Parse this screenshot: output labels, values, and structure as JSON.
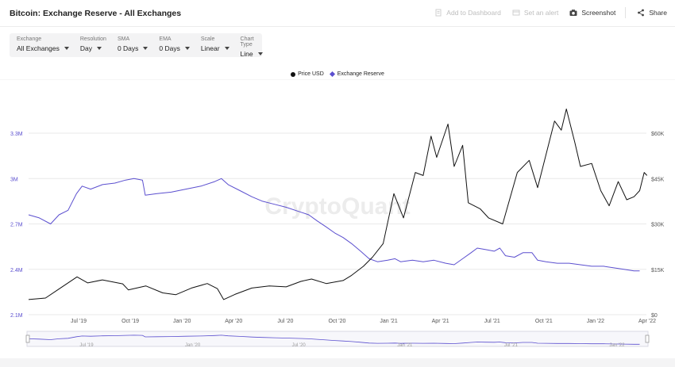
{
  "header": {
    "title": "Bitcoin: Exchange Reserve - All Exchanges",
    "actions": {
      "add_dashboard": "Add to Dashboard",
      "set_alert": "Set an alert",
      "screenshot": "Screenshot",
      "share": "Share"
    }
  },
  "filters": [
    {
      "label": "Exchange",
      "value": "All Exchanges"
    },
    {
      "label": "Resolution",
      "value": "Day"
    },
    {
      "label": "SMA",
      "value": "0 Days"
    },
    {
      "label": "EMA",
      "value": "0 Days"
    },
    {
      "label": "Scale",
      "value": "Linear"
    },
    {
      "label": "Chart Type",
      "value": "Line"
    }
  ],
  "watermark": "CryptoQuant",
  "colors": {
    "price": "#111111",
    "reserve": "#5b4fcf",
    "grid": "#e9e9e9"
  },
  "chart_data": {
    "type": "line",
    "legend": [
      "Price USD",
      "Exchange Reserve"
    ],
    "legend_position": "top-center",
    "x_ticks": [
      "Jul '19",
      "Oct '19",
      "Jan '20",
      "Apr '20",
      "Jul '20",
      "Oct '20",
      "Jan '21",
      "Apr '21",
      "Jul '21",
      "Oct '21",
      "Jan '22",
      "Apr '22"
    ],
    "navigator_ticks": [
      "Jul '19",
      "Jan '20",
      "Jul '20",
      "Jan '21",
      "Jul '21",
      "Jan '22"
    ],
    "x_range": [
      "2019-04-01",
      "2022-04-01"
    ],
    "y_left": {
      "label": "Exchange Reserve",
      "ticks": [
        "2.1M",
        "2.4M",
        "2.7M",
        "3M",
        "3.3M"
      ],
      "range": [
        2100000,
        3300000
      ]
    },
    "y_right": {
      "label": "Price USD",
      "ticks": [
        "$0",
        "$15K",
        "$30K",
        "$45K",
        "$60K"
      ],
      "range": [
        0,
        60000
      ]
    },
    "grid": true,
    "series": [
      {
        "name": "Exchange Reserve",
        "axis": "left",
        "points": [
          [
            "2019-04-01",
            2760000
          ],
          [
            "2019-04-20",
            2740000
          ],
          [
            "2019-05-10",
            2700000
          ],
          [
            "2019-05-25",
            2760000
          ],
          [
            "2019-06-10",
            2790000
          ],
          [
            "2019-06-25",
            2900000
          ],
          [
            "2019-07-05",
            2950000
          ],
          [
            "2019-07-20",
            2930000
          ],
          [
            "2019-08-10",
            2960000
          ],
          [
            "2019-09-01",
            2970000
          ],
          [
            "2019-09-20",
            2990000
          ],
          [
            "2019-10-05",
            3000000
          ],
          [
            "2019-10-20",
            2990000
          ],
          [
            "2019-10-25",
            2890000
          ],
          [
            "2019-11-15",
            2900000
          ],
          [
            "2019-12-10",
            2910000
          ],
          [
            "2020-01-05",
            2930000
          ],
          [
            "2020-02-01",
            2950000
          ],
          [
            "2020-02-25",
            2980000
          ],
          [
            "2020-03-08",
            3000000
          ],
          [
            "2020-03-20",
            2960000
          ],
          [
            "2020-04-10",
            2920000
          ],
          [
            "2020-05-01",
            2880000
          ],
          [
            "2020-05-20",
            2850000
          ],
          [
            "2020-06-10",
            2830000
          ],
          [
            "2020-07-01",
            2810000
          ],
          [
            "2020-07-25",
            2780000
          ],
          [
            "2020-08-10",
            2760000
          ],
          [
            "2020-08-25",
            2720000
          ],
          [
            "2020-09-10",
            2680000
          ],
          [
            "2020-09-25",
            2640000
          ],
          [
            "2020-10-10",
            2610000
          ],
          [
            "2020-10-25",
            2570000
          ],
          [
            "2020-11-10",
            2520000
          ],
          [
            "2020-11-25",
            2470000
          ],
          [
            "2020-12-10",
            2450000
          ],
          [
            "2020-12-28",
            2460000
          ],
          [
            "2021-01-10",
            2470000
          ],
          [
            "2021-01-20",
            2450000
          ],
          [
            "2021-02-10",
            2460000
          ],
          [
            "2021-03-01",
            2450000
          ],
          [
            "2021-03-20",
            2460000
          ],
          [
            "2021-04-10",
            2440000
          ],
          [
            "2021-04-25",
            2430000
          ],
          [
            "2021-05-10",
            2470000
          ],
          [
            "2021-05-25",
            2510000
          ],
          [
            "2021-06-05",
            2540000
          ],
          [
            "2021-06-20",
            2530000
          ],
          [
            "2021-07-05",
            2520000
          ],
          [
            "2021-07-15",
            2540000
          ],
          [
            "2021-07-25",
            2490000
          ],
          [
            "2021-08-10",
            2480000
          ],
          [
            "2021-08-25",
            2510000
          ],
          [
            "2021-09-10",
            2510000
          ],
          [
            "2021-09-20",
            2460000
          ],
          [
            "2021-10-05",
            2450000
          ],
          [
            "2021-10-25",
            2440000
          ],
          [
            "2021-11-15",
            2440000
          ],
          [
            "2021-12-05",
            2430000
          ],
          [
            "2021-12-25",
            2420000
          ],
          [
            "2022-01-15",
            2420000
          ],
          [
            "2022-02-01",
            2410000
          ],
          [
            "2022-02-20",
            2400000
          ],
          [
            "2022-03-10",
            2390000
          ],
          [
            "2022-03-20",
            2390000
          ]
        ]
      },
      {
        "name": "Price USD",
        "axis": "right",
        "points": [
          [
            "2019-04-01",
            5000
          ],
          [
            "2019-05-01",
            5500
          ],
          [
            "2019-05-25",
            8500
          ],
          [
            "2019-06-26",
            12500
          ],
          [
            "2019-07-15",
            10500
          ],
          [
            "2019-08-10",
            11500
          ],
          [
            "2019-09-15",
            10200
          ],
          [
            "2019-09-25",
            8200
          ],
          [
            "2019-10-26",
            9500
          ],
          [
            "2019-11-25",
            7200
          ],
          [
            "2019-12-18",
            6600
          ],
          [
            "2020-01-15",
            8800
          ],
          [
            "2020-02-12",
            10300
          ],
          [
            "2020-03-01",
            8600
          ],
          [
            "2020-03-12",
            5000
          ],
          [
            "2020-04-01",
            6700
          ],
          [
            "2020-05-01",
            8800
          ],
          [
            "2020-06-01",
            9500
          ],
          [
            "2020-07-01",
            9200
          ],
          [
            "2020-07-27",
            11000
          ],
          [
            "2020-08-15",
            11800
          ],
          [
            "2020-09-10",
            10300
          ],
          [
            "2020-10-10",
            11300
          ],
          [
            "2020-10-25",
            13000
          ],
          [
            "2020-11-15",
            16000
          ],
          [
            "2020-12-01",
            19000
          ],
          [
            "2020-12-20",
            23500
          ],
          [
            "2021-01-08",
            40000
          ],
          [
            "2021-01-25",
            32000
          ],
          [
            "2021-02-15",
            47000
          ],
          [
            "2021-03-01",
            46000
          ],
          [
            "2021-03-15",
            59000
          ],
          [
            "2021-03-25",
            52000
          ],
          [
            "2021-04-14",
            63000
          ],
          [
            "2021-04-25",
            49000
          ],
          [
            "2021-05-10",
            56000
          ],
          [
            "2021-05-20",
            37000
          ],
          [
            "2021-06-10",
            35000
          ],
          [
            "2021-06-25",
            32000
          ],
          [
            "2021-07-20",
            30000
          ],
          [
            "2021-08-15",
            47000
          ],
          [
            "2021-09-05",
            51000
          ],
          [
            "2021-09-20",
            42000
          ],
          [
            "2021-10-20",
            64000
          ],
          [
            "2021-11-01",
            61000
          ],
          [
            "2021-11-10",
            68000
          ],
          [
            "2021-11-25",
            57000
          ],
          [
            "2021-12-05",
            49000
          ],
          [
            "2021-12-25",
            50000
          ],
          [
            "2022-01-10",
            41000
          ],
          [
            "2022-01-25",
            36000
          ],
          [
            "2022-02-10",
            44000
          ],
          [
            "2022-02-25",
            38000
          ],
          [
            "2022-03-10",
            39000
          ],
          [
            "2022-03-20",
            41000
          ],
          [
            "2022-03-28",
            47000
          ],
          [
            "2022-04-02",
            46000
          ]
        ]
      }
    ]
  }
}
